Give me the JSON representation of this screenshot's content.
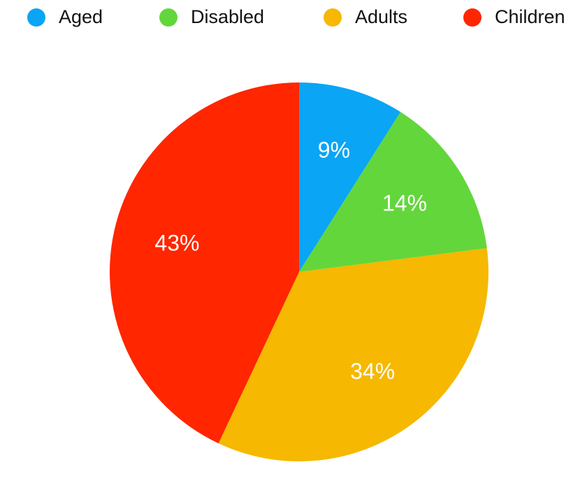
{
  "chart_data": {
    "type": "pie",
    "categories": [
      "Aged",
      "Disabled",
      "Adults",
      "Children"
    ],
    "values": [
      9,
      14,
      34,
      43
    ],
    "value_labels": [
      "9%",
      "14%",
      "34%",
      "43%"
    ],
    "colors": [
      "#0aa5f5",
      "#63d63c",
      "#f6b800",
      "#ff2600"
    ],
    "legend": "top"
  }
}
